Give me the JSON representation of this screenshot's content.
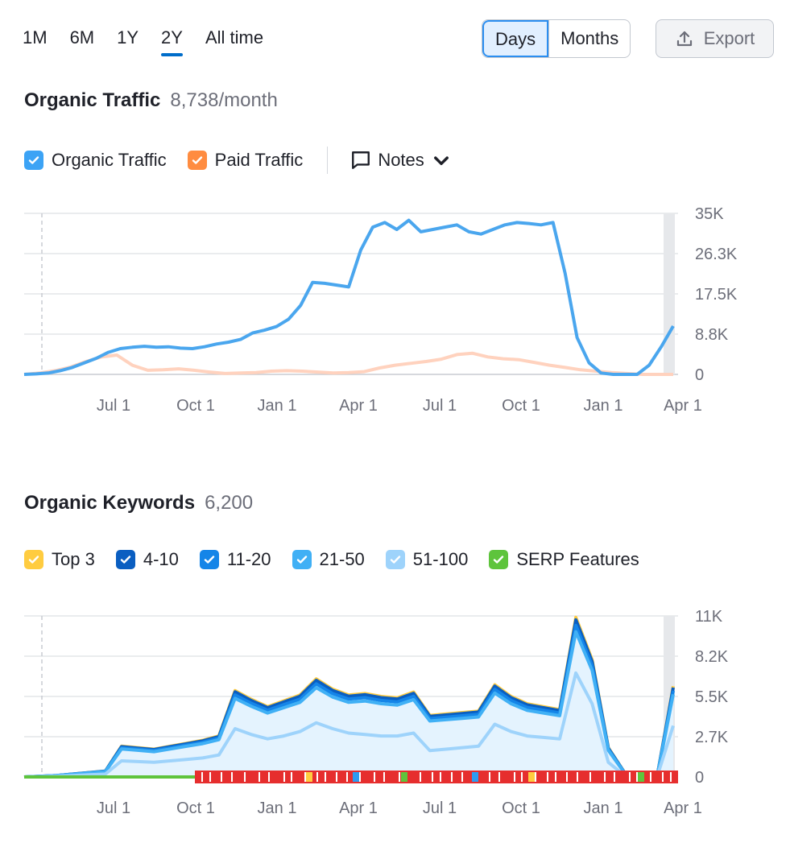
{
  "range_tabs": [
    {
      "label": "1M",
      "active": false
    },
    {
      "label": "6M",
      "active": false
    },
    {
      "label": "1Y",
      "active": false
    },
    {
      "label": "2Y",
      "active": true
    },
    {
      "label": "All time",
      "active": false
    }
  ],
  "granularity": {
    "days_label": "Days",
    "months_label": "Months",
    "selected": "Days"
  },
  "export_label": "Export",
  "traffic": {
    "title": "Organic Traffic",
    "value": "8,738/month",
    "legend": {
      "organic_label": "Organic Traffic",
      "paid_label": "Paid Traffic",
      "notes_label": "Notes"
    }
  },
  "keywords": {
    "title": "Organic Keywords",
    "value": "6,200",
    "legend": [
      {
        "label": "Top 3",
        "color": "#ffcc40"
      },
      {
        "label": "4-10",
        "color": "#0a5ec1"
      },
      {
        "label": "11-20",
        "color": "#1485e8"
      },
      {
        "label": "21-50",
        "color": "#40b0f5"
      },
      {
        "label": "51-100",
        "color": "#9ed3fb"
      },
      {
        "label": "SERP Features",
        "color": "#5ec43c"
      }
    ]
  },
  "colors": {
    "accent": "#006dca",
    "organic": "#4aa6ee",
    "paid": "#ffd2be",
    "top3": "#ffcc40",
    "serp_green": "#5ec43c",
    "serp_red": "#e62e2e"
  },
  "chart_data": [
    {
      "type": "line",
      "x_ticks": [
        "Jul 1",
        "Oct 1",
        "Jan 1",
        "Apr 1",
        "Jul 1",
        "Oct 1",
        "Jan 1",
        "Apr 1"
      ],
      "y_ticks": [
        "35K",
        "26.3K",
        "17.5K",
        "8.8K",
        "0"
      ],
      "ylim": [
        0,
        35000
      ],
      "series": [
        {
          "name": "Organic Traffic",
          "values": [
            0,
            100,
            300,
            800,
            1500,
            2500,
            3500,
            4800,
            5600,
            5900,
            6100,
            5900,
            6000,
            5700,
            5600,
            6000,
            6600,
            7000,
            7600,
            9000,
            9600,
            10400,
            12000,
            15000,
            20000,
            19800,
            19400,
            19000,
            27000,
            32000,
            33000,
            31500,
            33500,
            31000,
            31500,
            32000,
            32500,
            31000,
            30500,
            31500,
            32500,
            33000,
            32800,
            32500,
            33000,
            22000,
            8000,
            2500,
            300,
            0,
            0,
            0,
            2000,
            6000,
            10500
          ]
        },
        {
          "name": "Paid Traffic",
          "values": [
            0,
            300,
            800,
            1600,
            2800,
            3800,
            4200,
            2000,
            900,
            1000,
            1200,
            900,
            500,
            200,
            300,
            400,
            700,
            800,
            700,
            500,
            300,
            400,
            600,
            1400,
            2000,
            2400,
            2800,
            3300,
            4300,
            4600,
            3800,
            3400,
            3200,
            2600,
            2000,
            1500,
            1000,
            700,
            400,
            200,
            0,
            0,
            0
          ]
        }
      ]
    },
    {
      "type": "area",
      "x_ticks": [
        "Jul 1",
        "Oct 1",
        "Jan 1",
        "Apr 1",
        "Jul 1",
        "Oct 1",
        "Jan 1",
        "Apr 1"
      ],
      "y_ticks": [
        "11K",
        "8.2K",
        "5.5K",
        "2.7K",
        "0"
      ],
      "ylim": [
        0,
        11000
      ],
      "series": [
        {
          "name": "Top 3",
          "values": [
            0,
            50,
            100,
            200,
            300,
            400,
            2100,
            2000,
            1900,
            2100,
            2300,
            2500,
            2800,
            5900,
            5300,
            4800,
            5200,
            5600,
            6700,
            6000,
            5600,
            5700,
            5500,
            5400,
            5800,
            4200,
            4300,
            4400,
            4500,
            6300,
            5500,
            5000,
            4800,
            4600,
            10900,
            8000,
            2000,
            300,
            0,
            0,
            6200
          ]
        },
        {
          "name": "51-100",
          "values": [
            0,
            20,
            50,
            100,
            150,
            200,
            1100,
            1050,
            1000,
            1100,
            1200,
            1300,
            1500,
            3300,
            2900,
            2600,
            2800,
            3100,
            3700,
            3300,
            3000,
            2900,
            2800,
            2800,
            3000,
            1800,
            1900,
            2000,
            2100,
            3600,
            3100,
            2800,
            2700,
            2600,
            7100,
            5000,
            1000,
            100,
            0,
            0,
            3500
          ]
        }
      ],
      "serp_features": {
        "green_until": "Sep",
        "red_from": "Sep"
      }
    }
  ]
}
